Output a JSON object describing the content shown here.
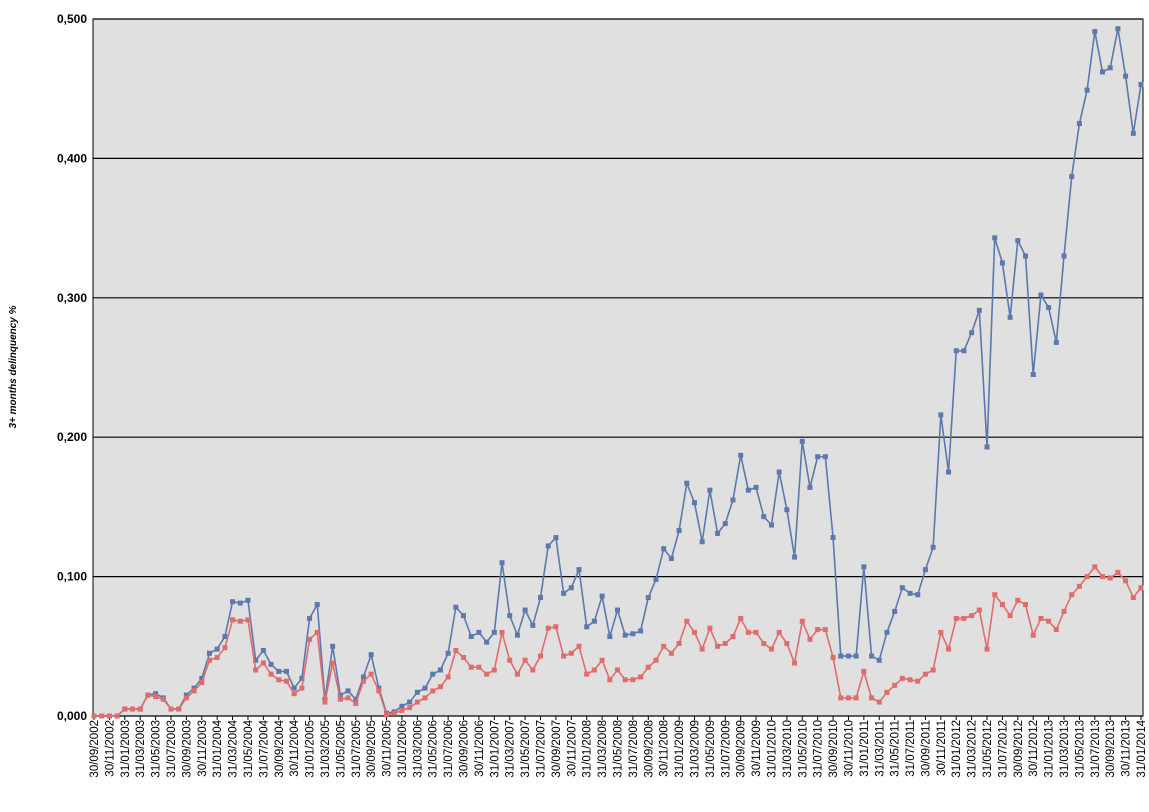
{
  "chart_data": {
    "type": "line",
    "y_label": "3+ months delinquency %",
    "categories": [
      "30/09/2002",
      null,
      "30/11/2002",
      null,
      "31/01/2003",
      null,
      "31/03/2003",
      null,
      "31/05/2003",
      null,
      "31/07/2003",
      null,
      "30/09/2003",
      null,
      "30/11/2003",
      null,
      "31/01/2004",
      null,
      "31/03/2004",
      null,
      "31/05/2004",
      null,
      "31/07/2004",
      null,
      "30/09/2004",
      null,
      "30/11/2004",
      null,
      "31/01/2005",
      null,
      "31/03/2005",
      null,
      "31/05/2005",
      null,
      "31/07/2005",
      null,
      "30/09/2005",
      null,
      "30/11/2005",
      null,
      "31/01/2006",
      null,
      "31/03/2006",
      null,
      "31/05/2006",
      null,
      "31/07/2006",
      null,
      "30/09/2006",
      null,
      "30/11/2006",
      null,
      "31/01/2007",
      null,
      "31/03/2007",
      null,
      "31/05/2007",
      null,
      "31/07/2007",
      null,
      "30/09/2007",
      null,
      "30/11/2007",
      null,
      "31/01/2008",
      null,
      "31/03/2008",
      null,
      "31/05/2008",
      null,
      "31/07/2008",
      null,
      "30/09/2008",
      null,
      "30/11/2008",
      null,
      "31/01/2009",
      null,
      "31/03/2009",
      null,
      "31/05/2009",
      null,
      "31/07/2009",
      null,
      "30/09/2009",
      null,
      "30/11/2009",
      null,
      "31/01/2010",
      null,
      "31/03/2010",
      null,
      "31/05/2010",
      null,
      "31/07/2010",
      null,
      "30/09/2010",
      null,
      "30/11/2010",
      null,
      "31/01/2011",
      null,
      "31/03/2011",
      null,
      "31/05/2011",
      null,
      "31/07/2011",
      null,
      "30/09/2011",
      null,
      "30/11/2011",
      null,
      "31/01/2012",
      null,
      "31/03/2012",
      null,
      "31/05/2012",
      null,
      "31/07/2012",
      null,
      "30/09/2012",
      null,
      "30/11/2012",
      null,
      "31/01/2013",
      null,
      "31/03/2013",
      null,
      "31/05/2013",
      null,
      "31/07/2013",
      null,
      "30/09/2013",
      null,
      "30/11/2013",
      null,
      "31/01/2014"
    ],
    "series": [
      {
        "color": "#5b79ad",
        "values": [
          0,
          0,
          0,
          0,
          0.005,
          0.005,
          0.005,
          0.015,
          0.016,
          0.013,
          0.005,
          0.005,
          0.015,
          0.02,
          0.027,
          0.045,
          0.048,
          0.057,
          0.082,
          0.081,
          0.083,
          0.04,
          0.047,
          0.037,
          0.032,
          0.032,
          0.02,
          0.027,
          0.07,
          0.08,
          0.012,
          0.05,
          0.015,
          0.018,
          0.012,
          0.028,
          0.044,
          0.02,
          0.002,
          0.003,
          0.007,
          0.01,
          0.017,
          0.02,
          0.03,
          0.033,
          0.045,
          0.078,
          0.072,
          0.057,
          0.06,
          0.053,
          0.06,
          0.11,
          0.072,
          0.058,
          0.076,
          0.065,
          0.085,
          0.122,
          0.128,
          0.088,
          0.092,
          0.105,
          0.064,
          0.068,
          0.086,
          0.057,
          0.076,
          0.058,
          0.059,
          0.061,
          0.085,
          0.098,
          0.12,
          0.113,
          0.133,
          0.167,
          0.153,
          0.125,
          0.162,
          0.131,
          0.138,
          0.155,
          0.187,
          0.162,
          0.164,
          0.143,
          0.137,
          0.175,
          0.148,
          0.114,
          0.197,
          0.164,
          0.186,
          0.186,
          0.128,
          0.043,
          0.043,
          0.043,
          0.107,
          0.043,
          0.04,
          0.06,
          0.075,
          0.092,
          0.088,
          0.087,
          0.105,
          0.121,
          0.216,
          0.175,
          0.262,
          0.262,
          0.275,
          0.291,
          0.193,
          0.343,
          0.325,
          0.286,
          0.341,
          0.33,
          0.245,
          0.302,
          0.293,
          0.268,
          0.33,
          0.387,
          0.425,
          0.449,
          0.491,
          0.462,
          0.465,
          0.493,
          0.459,
          0.418,
          0.453
        ]
      },
      {
        "color": "#e06c6c",
        "values": [
          0,
          0,
          0,
          0,
          0.005,
          0.005,
          0.005,
          0.015,
          0.014,
          0.012,
          0.005,
          0.005,
          0.013,
          0.018,
          0.024,
          0.04,
          0.042,
          0.049,
          0.069,
          0.068,
          0.069,
          0.033,
          0.038,
          0.03,
          0.026,
          0.025,
          0.016,
          0.02,
          0.055,
          0.06,
          0.01,
          0.038,
          0.012,
          0.013,
          0.009,
          0.025,
          0.03,
          0.018,
          0.001,
          0.002,
          0.004,
          0.006,
          0.01,
          0.013,
          0.018,
          0.021,
          0.028,
          0.047,
          0.042,
          0.035,
          0.035,
          0.03,
          0.033,
          0.06,
          0.04,
          0.03,
          0.04,
          0.033,
          0.043,
          0.063,
          0.064,
          0.043,
          0.045,
          0.05,
          0.03,
          0.033,
          0.04,
          0.026,
          0.033,
          0.026,
          0.026,
          0.028,
          0.035,
          0.04,
          0.05,
          0.045,
          0.052,
          0.068,
          0.06,
          0.048,
          0.063,
          0.05,
          0.052,
          0.057,
          0.07,
          0.06,
          0.06,
          0.052,
          0.048,
          0.06,
          0.052,
          0.038,
          0.068,
          0.055,
          0.062,
          0.062,
          0.042,
          0.013,
          0.013,
          0.013,
          0.032,
          0.013,
          0.01,
          0.017,
          0.022,
          0.027,
          0.026,
          0.025,
          0.03,
          0.033,
          0.06,
          0.048,
          0.07,
          0.07,
          0.072,
          0.076,
          0.048,
          0.087,
          0.08,
          0.072,
          0.083,
          0.08,
          0.058,
          0.07,
          0.068,
          0.062,
          0.075,
          0.087,
          0.093,
          0.1,
          0.107,
          0.1,
          0.099,
          0.103,
          0.097,
          0.085,
          0.092
        ]
      }
    ],
    "ylim": [
      0,
      0.5
    ],
    "yticks": [
      {
        "value": 0,
        "label": "0,000"
      },
      {
        "value": 0.1,
        "label": "0,100"
      },
      {
        "value": 0.2,
        "label": "0,200"
      },
      {
        "value": 0.3,
        "label": "0,300"
      },
      {
        "value": 0.4,
        "label": "0,400"
      },
      {
        "value": 0.5,
        "label": "0,500"
      }
    ],
    "grid": true,
    "plot_background": "#e0e0e0"
  }
}
